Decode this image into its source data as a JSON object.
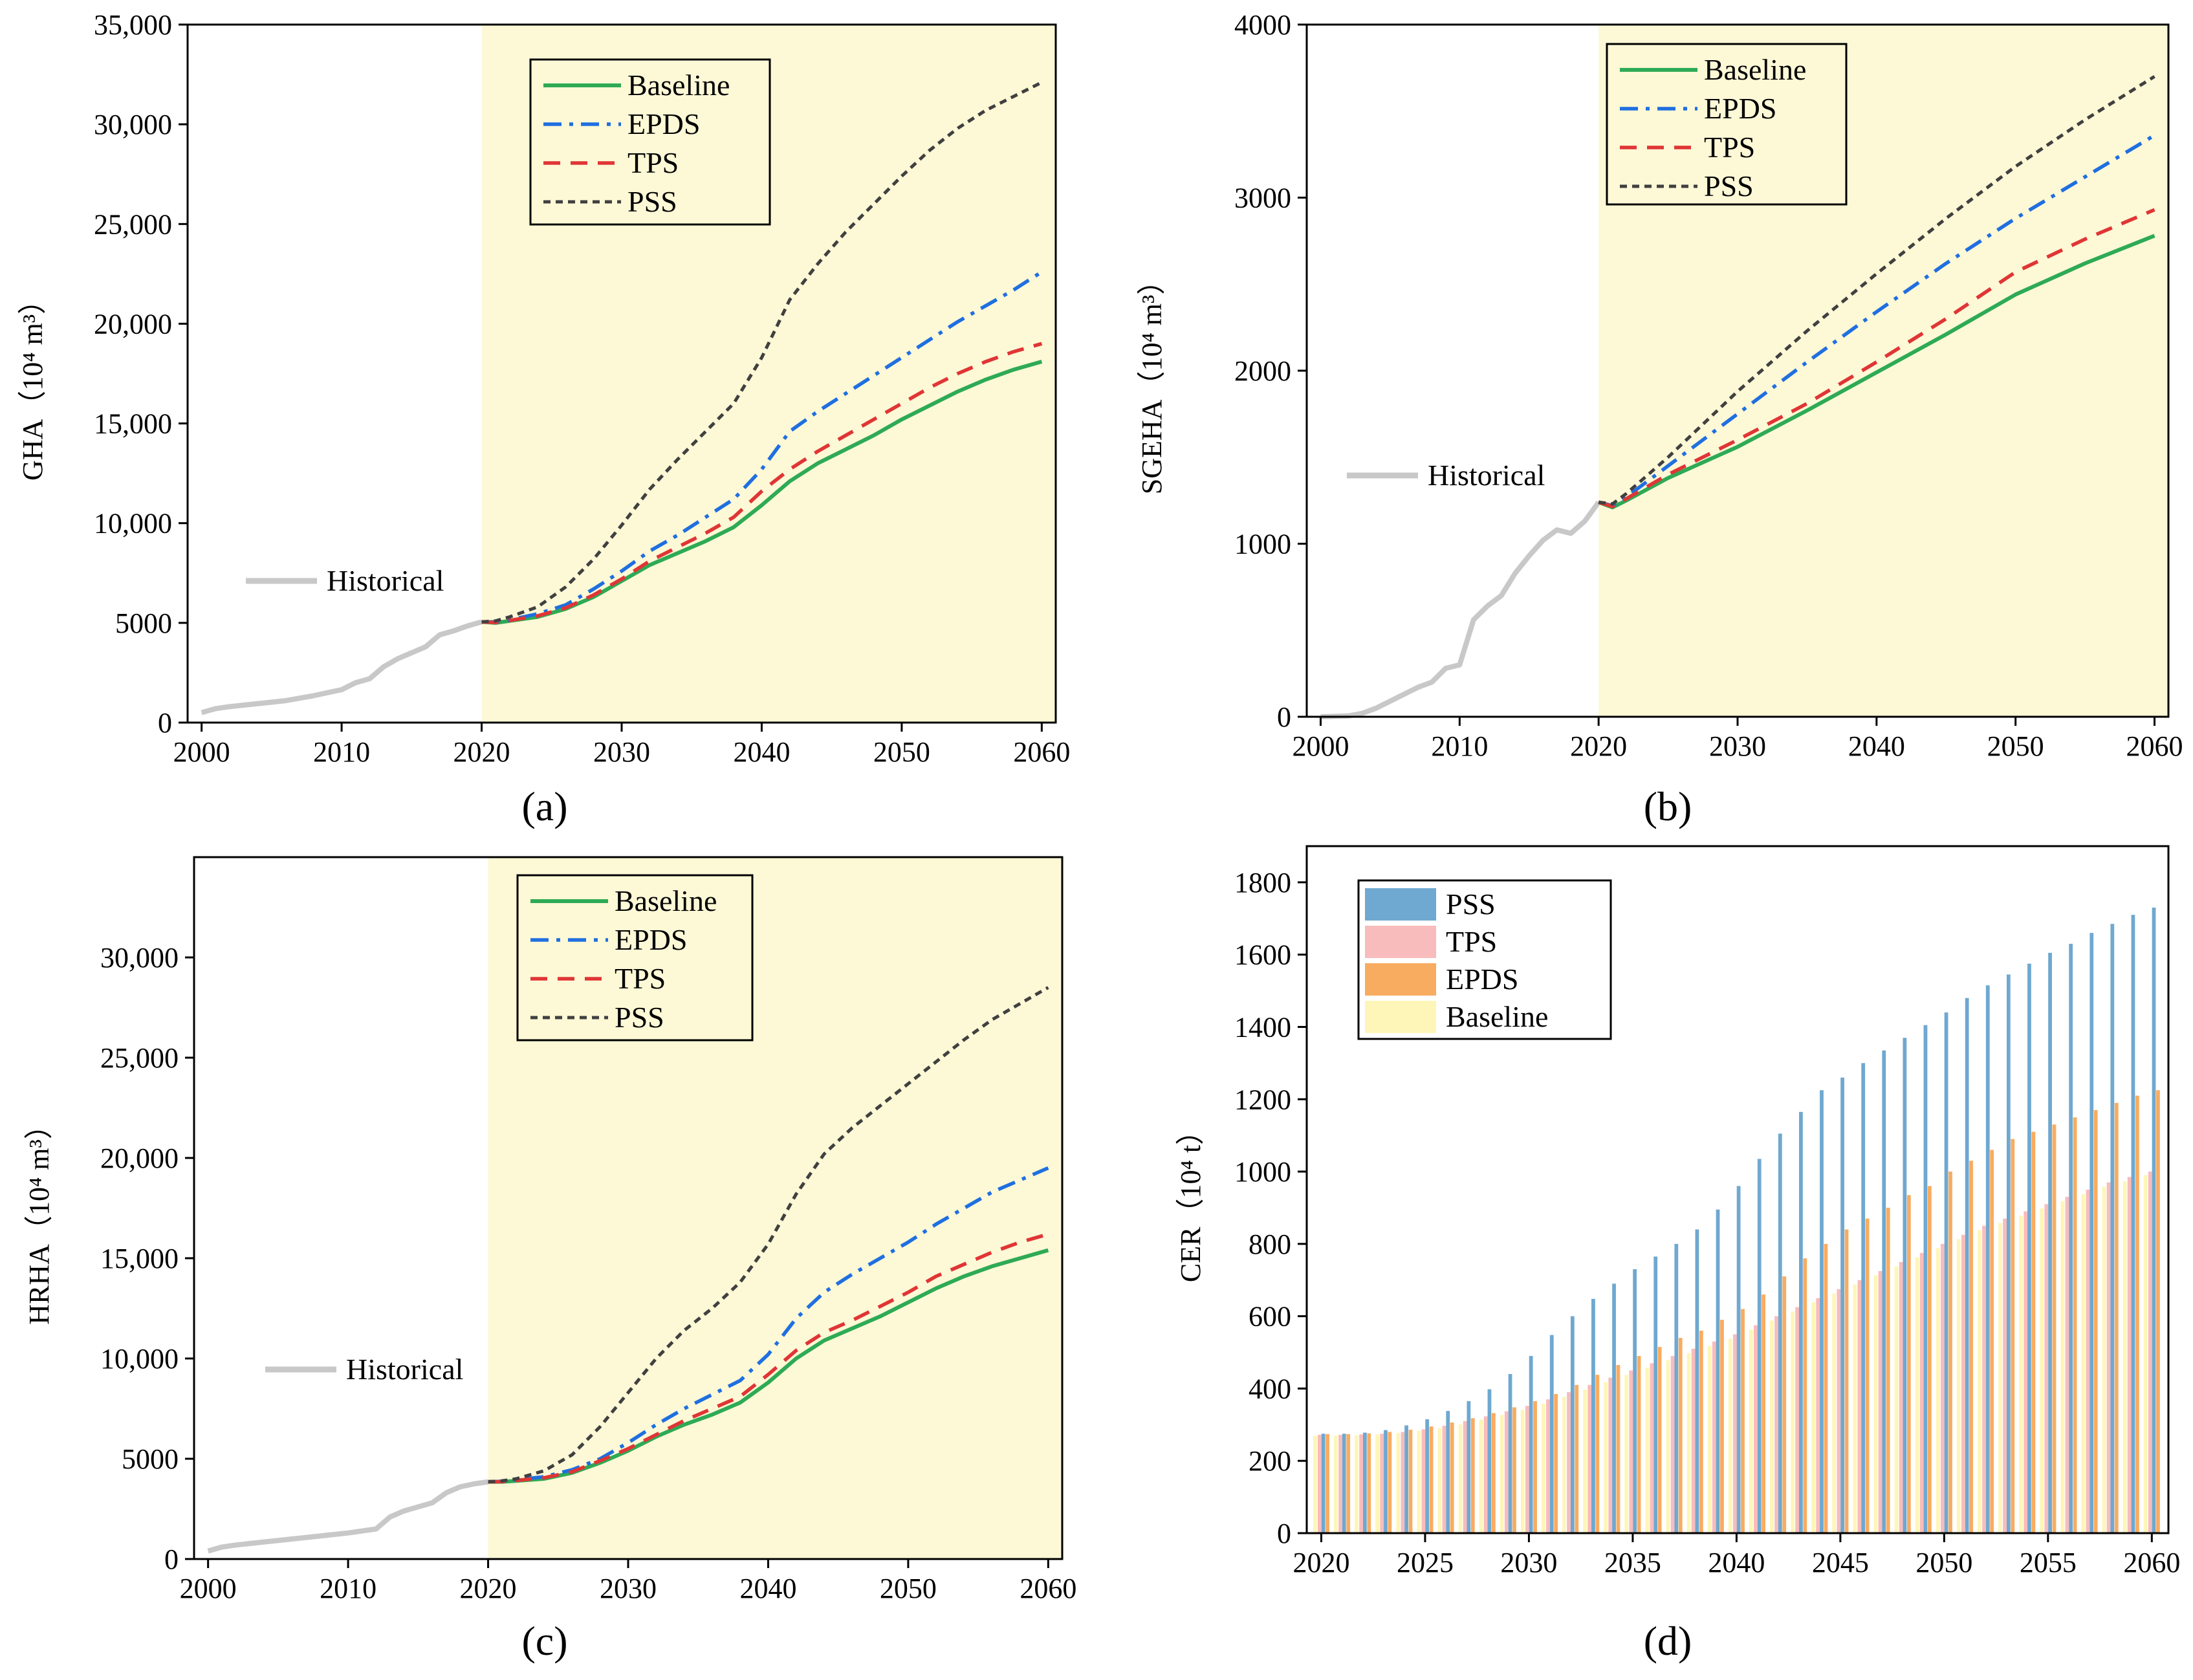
{
  "colors": {
    "baseline": "#2eaa55",
    "epds": "#1f6fe0",
    "tps": "#e03535",
    "pss": "#404040",
    "historical": "#c8c8c8",
    "scenario_bg": "#fdf8d6",
    "bar_pss": "#6fa8d0",
    "bar_tps": "#f8bcbc",
    "bar_epds": "#f8ac60",
    "bar_baseline": "#fdf6b8"
  },
  "chart_data": [
    {
      "id": "a",
      "panel_label": "(a)",
      "type": "line",
      "ylabel": "GHA（10⁴ m³）",
      "xlim": [
        1999,
        2061
      ],
      "ylim": [
        0,
        35000
      ],
      "xticks": [
        2000,
        2010,
        2020,
        2030,
        2040,
        2050,
        2060
      ],
      "xtick_labels": [
        "2000",
        "2010",
        "2020",
        "2030",
        "2040",
        "2050",
        "2060"
      ],
      "yticks": [
        0,
        5000,
        10000,
        15000,
        20000,
        25000,
        30000,
        35000
      ],
      "ytick_labels": [
        "0",
        "5000",
        "10,000",
        "15,000",
        "20,000",
        "25,000",
        "30,000",
        "35,000"
      ],
      "shade_from": 2020,
      "legend": {
        "placement": "top-center",
        "entries": [
          "Baseline",
          "EPDS",
          "TPS",
          "PSS"
        ]
      },
      "historical_label": "Historical",
      "historical": {
        "x": [
          2000,
          2001,
          2002,
          2004,
          2006,
          2008,
          2010,
          2011,
          2012,
          2013,
          2014,
          2016,
          2017,
          2018,
          2019,
          2020
        ],
        "y": [
          500,
          700,
          800,
          950,
          1100,
          1350,
          1650,
          2000,
          2200,
          2800,
          3200,
          3800,
          4400,
          4600,
          4850,
          5050
        ]
      },
      "series": [
        {
          "name": "Baseline",
          "x": [
            2020,
            2021,
            2022,
            2024,
            2026,
            2028,
            2030,
            2032,
            2034,
            2036,
            2038,
            2040,
            2042,
            2044,
            2046,
            2048,
            2050,
            2052,
            2054,
            2056,
            2058,
            2060
          ],
          "y": [
            5050,
            5000,
            5100,
            5300,
            5700,
            6300,
            7100,
            7900,
            8500,
            9100,
            9800,
            10900,
            12100,
            13000,
            13700,
            14400,
            15200,
            15900,
            16600,
            17200,
            17700,
            18100
          ]
        },
        {
          "name": "EPDS",
          "x": [
            2020,
            2021,
            2022,
            2024,
            2026,
            2028,
            2030,
            2032,
            2034,
            2036,
            2038,
            2040,
            2042,
            2044,
            2046,
            2048,
            2050,
            2052,
            2054,
            2056,
            2058,
            2060
          ],
          "y": [
            5050,
            5050,
            5150,
            5450,
            5900,
            6700,
            7600,
            8600,
            9400,
            10300,
            11200,
            12700,
            14600,
            15600,
            16500,
            17400,
            18300,
            19200,
            20100,
            20900,
            21700,
            22600
          ]
        },
        {
          "name": "TPS",
          "x": [
            2020,
            2021,
            2022,
            2024,
            2026,
            2028,
            2030,
            2032,
            2034,
            2036,
            2038,
            2040,
            2042,
            2044,
            2046,
            2048,
            2050,
            2052,
            2054,
            2056,
            2058,
            2060
          ],
          "y": [
            5050,
            5020,
            5120,
            5350,
            5750,
            6400,
            7200,
            8100,
            8800,
            9500,
            10300,
            11600,
            12700,
            13600,
            14400,
            15200,
            16000,
            16800,
            17500,
            18100,
            18600,
            19000
          ]
        },
        {
          "name": "PSS",
          "x": [
            2020,
            2021,
            2022,
            2024,
            2026,
            2028,
            2030,
            2032,
            2034,
            2036,
            2038,
            2040,
            2042,
            2044,
            2046,
            2048,
            2050,
            2052,
            2054,
            2056,
            2058,
            2060
          ],
          "y": [
            5050,
            5100,
            5300,
            5800,
            6800,
            8200,
            9900,
            11700,
            13200,
            14600,
            16000,
            18300,
            21200,
            23000,
            24600,
            26000,
            27400,
            28700,
            29800,
            30700,
            31400,
            32100
          ]
        }
      ]
    },
    {
      "id": "b",
      "panel_label": "(b)",
      "type": "line",
      "ylabel": "SGEHA（10⁴ m³）",
      "xlim": [
        1999,
        2061
      ],
      "ylim": [
        0,
        4000
      ],
      "xticks": [
        2000,
        2010,
        2020,
        2030,
        2040,
        2050,
        2060
      ],
      "xtick_labels": [
        "2000",
        "2010",
        "2020",
        "2030",
        "2040",
        "2050",
        "2060"
      ],
      "yticks": [
        0,
        1000,
        2000,
        3000,
        4000
      ],
      "ytick_labels": [
        "0",
        "1000",
        "2000",
        "3000",
        "4000"
      ],
      "shade_from": 2020,
      "legend": {
        "placement": "top-center",
        "entries": [
          "Baseline",
          "EPDS",
          "TPS",
          "PSS"
        ]
      },
      "historical_label": "Historical",
      "historical": {
        "x": [
          2000,
          2002,
          2003,
          2004,
          2005,
          2006,
          2007,
          2008,
          2009,
          2010,
          2011,
          2012,
          2013,
          2014,
          2015,
          2016,
          2017,
          2018,
          2019,
          2020
        ],
        "y": [
          0,
          5,
          20,
          50,
          90,
          130,
          170,
          200,
          280,
          300,
          560,
          640,
          700,
          830,
          930,
          1020,
          1080,
          1060,
          1130,
          1240
        ]
      },
      "series": [
        {
          "name": "Baseline",
          "x": [
            2020,
            2021,
            2022,
            2025,
            2030,
            2035,
            2040,
            2045,
            2050,
            2055,
            2060
          ],
          "y": [
            1240,
            1210,
            1250,
            1380,
            1560,
            1770,
            1990,
            2210,
            2440,
            2620,
            2780
          ]
        },
        {
          "name": "EPDS",
          "x": [
            2020,
            2021,
            2022,
            2025,
            2030,
            2035,
            2040,
            2045,
            2050,
            2055,
            2060
          ],
          "y": [
            1240,
            1220,
            1270,
            1450,
            1750,
            2050,
            2340,
            2620,
            2880,
            3120,
            3360
          ]
        },
        {
          "name": "TPS",
          "x": [
            2020,
            2021,
            2022,
            2025,
            2030,
            2035,
            2040,
            2045,
            2050,
            2055,
            2060
          ],
          "y": [
            1240,
            1215,
            1260,
            1400,
            1600,
            1810,
            2050,
            2300,
            2570,
            2760,
            2930
          ]
        },
        {
          "name": "PSS",
          "x": [
            2020,
            2021,
            2022,
            2025,
            2030,
            2035,
            2040,
            2045,
            2050,
            2055,
            2060
          ],
          "y": [
            1240,
            1230,
            1290,
            1500,
            1880,
            2230,
            2560,
            2880,
            3180,
            3450,
            3700
          ]
        }
      ]
    },
    {
      "id": "c",
      "panel_label": "(c)",
      "type": "line",
      "ylabel": "HRHA（10⁴ m³）",
      "xlim": [
        1999,
        2061
      ],
      "ylim": [
        0,
        35000
      ],
      "xticks": [
        2000,
        2010,
        2020,
        2030,
        2040,
        2050,
        2060
      ],
      "xtick_labels": [
        "2000",
        "2010",
        "2020",
        "2030",
        "2040",
        "2050",
        "2060"
      ],
      "yticks": [
        0,
        5000,
        10000,
        15000,
        20000,
        25000,
        30000
      ],
      "ytick_labels": [
        "0",
        "5000",
        "10,000",
        "15,000",
        "20,000",
        "25,000",
        "30,000"
      ],
      "shade_from": 2020,
      "legend": {
        "placement": "top-center",
        "entries": [
          "Baseline",
          "EPDS",
          "TPS",
          "PSS"
        ]
      },
      "historical_label": "Historical",
      "historical": {
        "x": [
          2000,
          2001,
          2002,
          2004,
          2006,
          2008,
          2010,
          2012,
          2013,
          2014,
          2016,
          2017,
          2018,
          2019,
          2020
        ],
        "y": [
          400,
          600,
          700,
          850,
          1000,
          1150,
          1300,
          1500,
          2100,
          2400,
          2800,
          3300,
          3600,
          3750,
          3850
        ]
      },
      "series": [
        {
          "name": "Baseline",
          "x": [
            2020,
            2021,
            2022,
            2024,
            2026,
            2028,
            2030,
            2032,
            2034,
            2036,
            2038,
            2040,
            2042,
            2044,
            2046,
            2048,
            2050,
            2052,
            2054,
            2056,
            2058,
            2060
          ],
          "y": [
            3850,
            3850,
            3900,
            4000,
            4300,
            4800,
            5400,
            6100,
            6700,
            7200,
            7800,
            8800,
            10000,
            10900,
            11500,
            12100,
            12800,
            13500,
            14100,
            14600,
            15000,
            15400
          ]
        },
        {
          "name": "EPDS",
          "x": [
            2020,
            2021,
            2022,
            2024,
            2026,
            2028,
            2030,
            2032,
            2034,
            2036,
            2038,
            2040,
            2042,
            2044,
            2046,
            2048,
            2050,
            2052,
            2054,
            2056,
            2058,
            2060
          ],
          "y": [
            3850,
            3870,
            3950,
            4100,
            4450,
            5000,
            5800,
            6700,
            7500,
            8200,
            8900,
            10200,
            12000,
            13300,
            14200,
            15000,
            15800,
            16700,
            17500,
            18300,
            18900,
            19500
          ]
        },
        {
          "name": "TPS",
          "x": [
            2020,
            2021,
            2022,
            2024,
            2026,
            2028,
            2030,
            2032,
            2034,
            2036,
            2038,
            2040,
            2042,
            2044,
            2046,
            2048,
            2050,
            2052,
            2054,
            2056,
            2058,
            2060
          ],
          "y": [
            3850,
            3860,
            3920,
            4050,
            4350,
            4900,
            5500,
            6200,
            6900,
            7500,
            8100,
            9200,
            10400,
            11300,
            11900,
            12600,
            13300,
            14100,
            14700,
            15300,
            15800,
            16200
          ]
        },
        {
          "name": "PSS",
          "x": [
            2020,
            2021,
            2022,
            2024,
            2026,
            2028,
            2030,
            2032,
            2034,
            2036,
            2038,
            2040,
            2042,
            2044,
            2046,
            2048,
            2050,
            2052,
            2054,
            2056,
            2058,
            2060
          ],
          "y": [
            3850,
            3900,
            4000,
            4400,
            5200,
            6600,
            8300,
            10000,
            11400,
            12500,
            13800,
            15700,
            18200,
            20200,
            21500,
            22600,
            23700,
            24800,
            25900,
            26900,
            27700,
            28500
          ]
        }
      ]
    },
    {
      "id": "d",
      "panel_label": "(d)",
      "type": "bar",
      "ylabel": "CER（10⁴ t）",
      "xlim": [
        2019.3,
        2060.8
      ],
      "ylim": [
        0,
        1900
      ],
      "xticks": [
        2020,
        2025,
        2030,
        2035,
        2040,
        2045,
        2050,
        2055,
        2060
      ],
      "xtick_labels": [
        "2020",
        "2025",
        "2030",
        "2035",
        "2040",
        "2045",
        "2050",
        "2055",
        "2060"
      ],
      "yticks": [
        0,
        200,
        400,
        600,
        800,
        1000,
        1200,
        1400,
        1600,
        1800
      ],
      "ytick_labels": [
        "0",
        "200",
        "400",
        "600",
        "800",
        "1000",
        "1200",
        "1400",
        "1600",
        "1800"
      ],
      "legend": {
        "placement": "top-left",
        "entries": [
          "PSS",
          "TPS",
          "EPDS",
          "Baseline"
        ]
      },
      "categories": [
        2020,
        2021,
        2022,
        2023,
        2024,
        2025,
        2026,
        2027,
        2028,
        2029,
        2030,
        2031,
        2032,
        2033,
        2034,
        2035,
        2036,
        2037,
        2038,
        2039,
        2040,
        2041,
        2042,
        2043,
        2044,
        2045,
        2046,
        2047,
        2048,
        2049,
        2050,
        2051,
        2052,
        2053,
        2054,
        2055,
        2056,
        2057,
        2058,
        2059,
        2060
      ],
      "series": [
        {
          "name": "PSS",
          "values": [
            275,
            275,
            278,
            285,
            298,
            315,
            338,
            365,
            398,
            440,
            490,
            548,
            600,
            648,
            690,
            730,
            765,
            800,
            840,
            895,
            960,
            1035,
            1105,
            1165,
            1225,
            1260,
            1300,
            1335,
            1370,
            1405,
            1440,
            1480,
            1515,
            1545,
            1575,
            1605,
            1630,
            1660,
            1685,
            1710,
            1730
          ]
        },
        {
          "name": "TPS",
          "values": [
            272,
            272,
            273,
            275,
            280,
            287,
            297,
            310,
            323,
            337,
            352,
            370,
            390,
            410,
            430,
            450,
            470,
            490,
            510,
            530,
            550,
            575,
            600,
            625,
            650,
            675,
            700,
            725,
            750,
            775,
            800,
            825,
            850,
            870,
            890,
            910,
            930,
            950,
            970,
            985,
            1000
          ]
        },
        {
          "name": "EPDS",
          "values": [
            274,
            274,
            276,
            280,
            286,
            295,
            306,
            318,
            332,
            348,
            365,
            385,
            410,
            438,
            465,
            490,
            515,
            540,
            560,
            590,
            620,
            660,
            710,
            760,
            800,
            840,
            870,
            900,
            935,
            960,
            1000,
            1030,
            1060,
            1090,
            1110,
            1130,
            1150,
            1170,
            1190,
            1210,
            1225
          ]
        },
        {
          "name": "Baseline",
          "values": [
            270,
            270,
            271,
            273,
            277,
            283,
            291,
            301,
            314,
            327,
            341,
            358,
            377,
            397,
            418,
            438,
            458,
            478,
            498,
            518,
            538,
            563,
            588,
            613,
            638,
            663,
            688,
            713,
            738,
            763,
            788,
            813,
            838,
            858,
            878,
            898,
            918,
            938,
            958,
            973,
            990
          ]
        }
      ]
    }
  ]
}
